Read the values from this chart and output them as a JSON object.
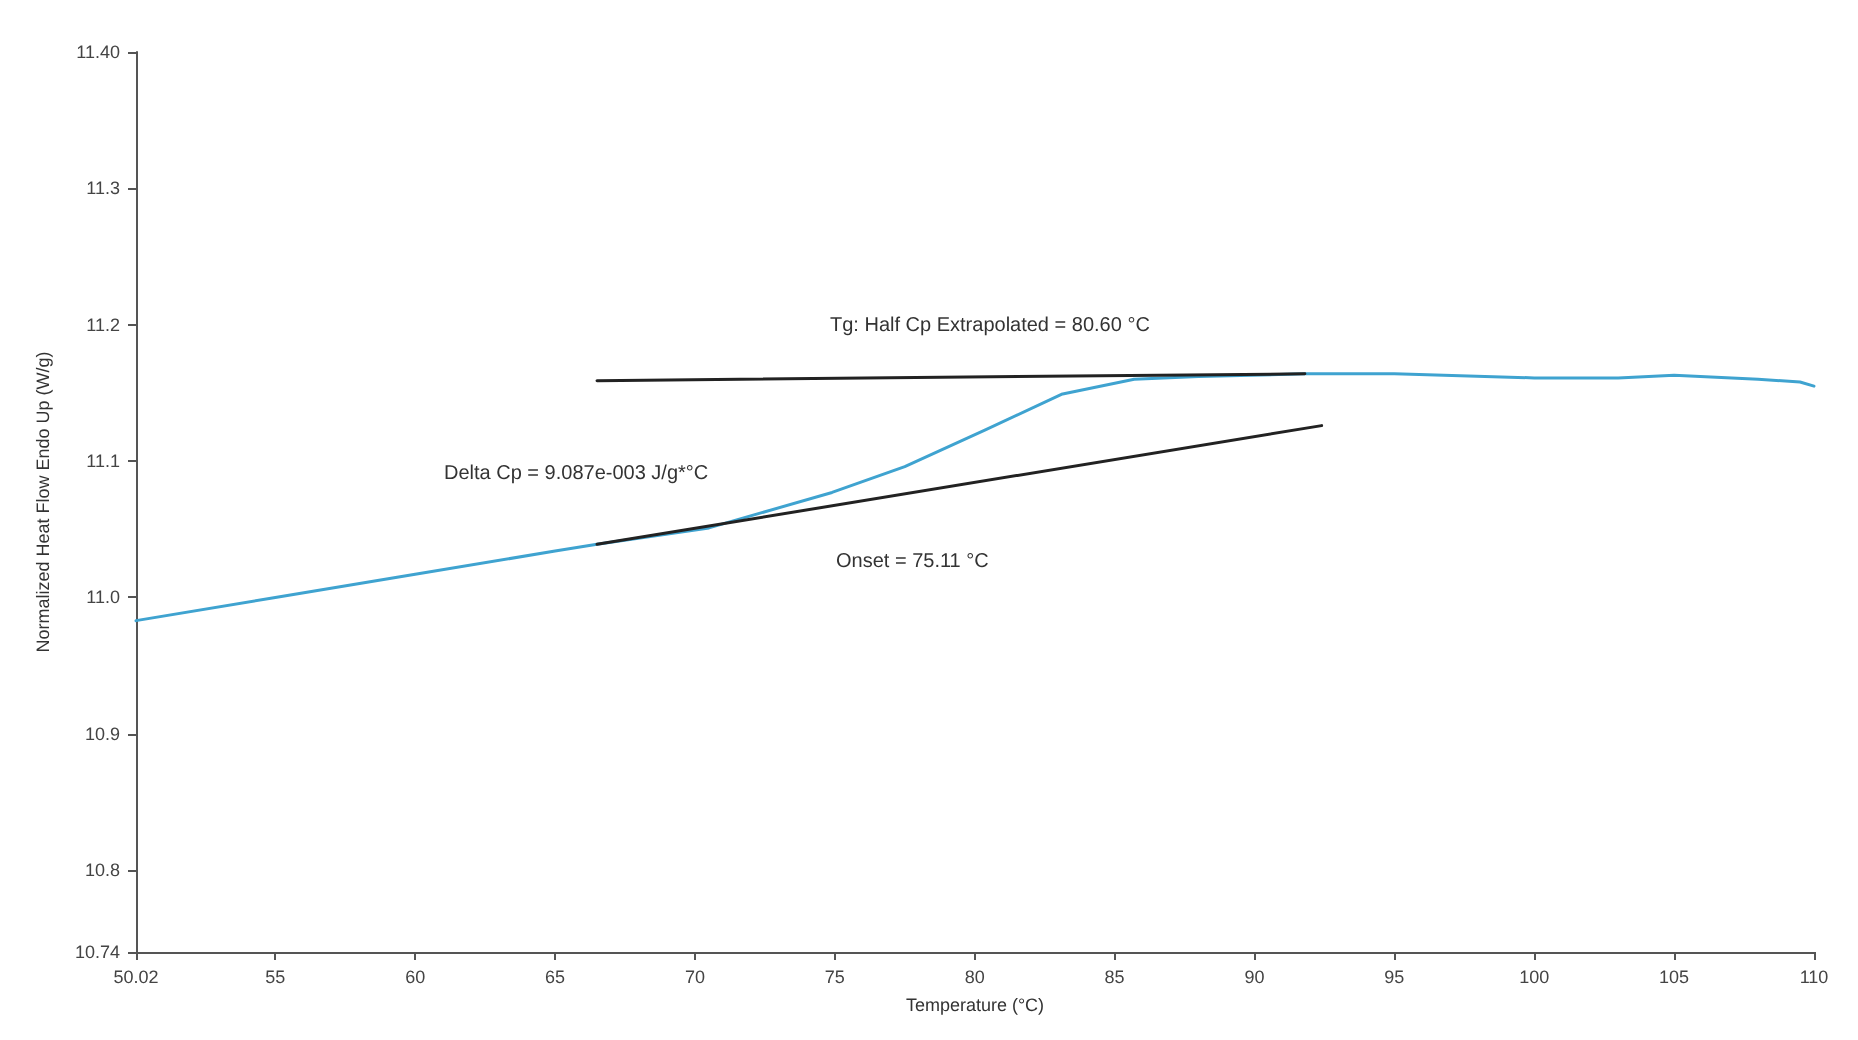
{
  "chart_data": {
    "type": "line",
    "xlabel": "Temperature (°C)",
    "ylabel": "Normalized Heat Flow Endo Up (W/g)",
    "xlim": [
      50.02,
      110
    ],
    "xticks": [
      {
        "value": 50.02,
        "label": "50.02"
      },
      55,
      60,
      65,
      70,
      75,
      80,
      85,
      90,
      95,
      100,
      105,
      110
    ],
    "ylim": [
      10.74,
      11.4
    ],
    "yticks": [
      {
        "value": 10.74,
        "label": "10.74"
      },
      10.8,
      10.9,
      {
        "value": 11,
        "label": "11.0"
      },
      11.1,
      11.2,
      11.3,
      {
        "value": 11.4,
        "label": "11.40"
      }
    ],
    "grid": false,
    "marker": "none",
    "line_style": "solid",
    "series": [
      {
        "color": "#3fa3d0",
        "x": [
          50.02,
          55,
          60,
          65,
          66.5,
          70.5,
          74.9,
          77.5,
          80.4,
          83.1,
          85.7,
          88,
          91.8,
          95,
          100,
          103,
          105,
          108,
          109.5,
          110
        ],
        "values": [
          10.983,
          11.0,
          11.017,
          11.034,
          11.039,
          11.051,
          11.077,
          11.096,
          11.123,
          11.149,
          11.16,
          11.162,
          11.164,
          11.164,
          11.161,
          11.161,
          11.163,
          11.16,
          11.158,
          11.155
        ]
      },
      {
        "color": "#222222",
        "x": [
          66.5,
          91.8
        ],
        "values": [
          11.159,
          11.164
        ]
      },
      {
        "color": "#222222",
        "x": [
          66.5,
          92.4
        ],
        "values": [
          11.039,
          11.126
        ]
      }
    ],
    "annotations": [
      "Tg: Half Cp Extrapolated = 80.60 °C",
      "Delta Cp = 9.087e-003 J/g*°C",
      "Onset = 75.11 °C"
    ]
  }
}
